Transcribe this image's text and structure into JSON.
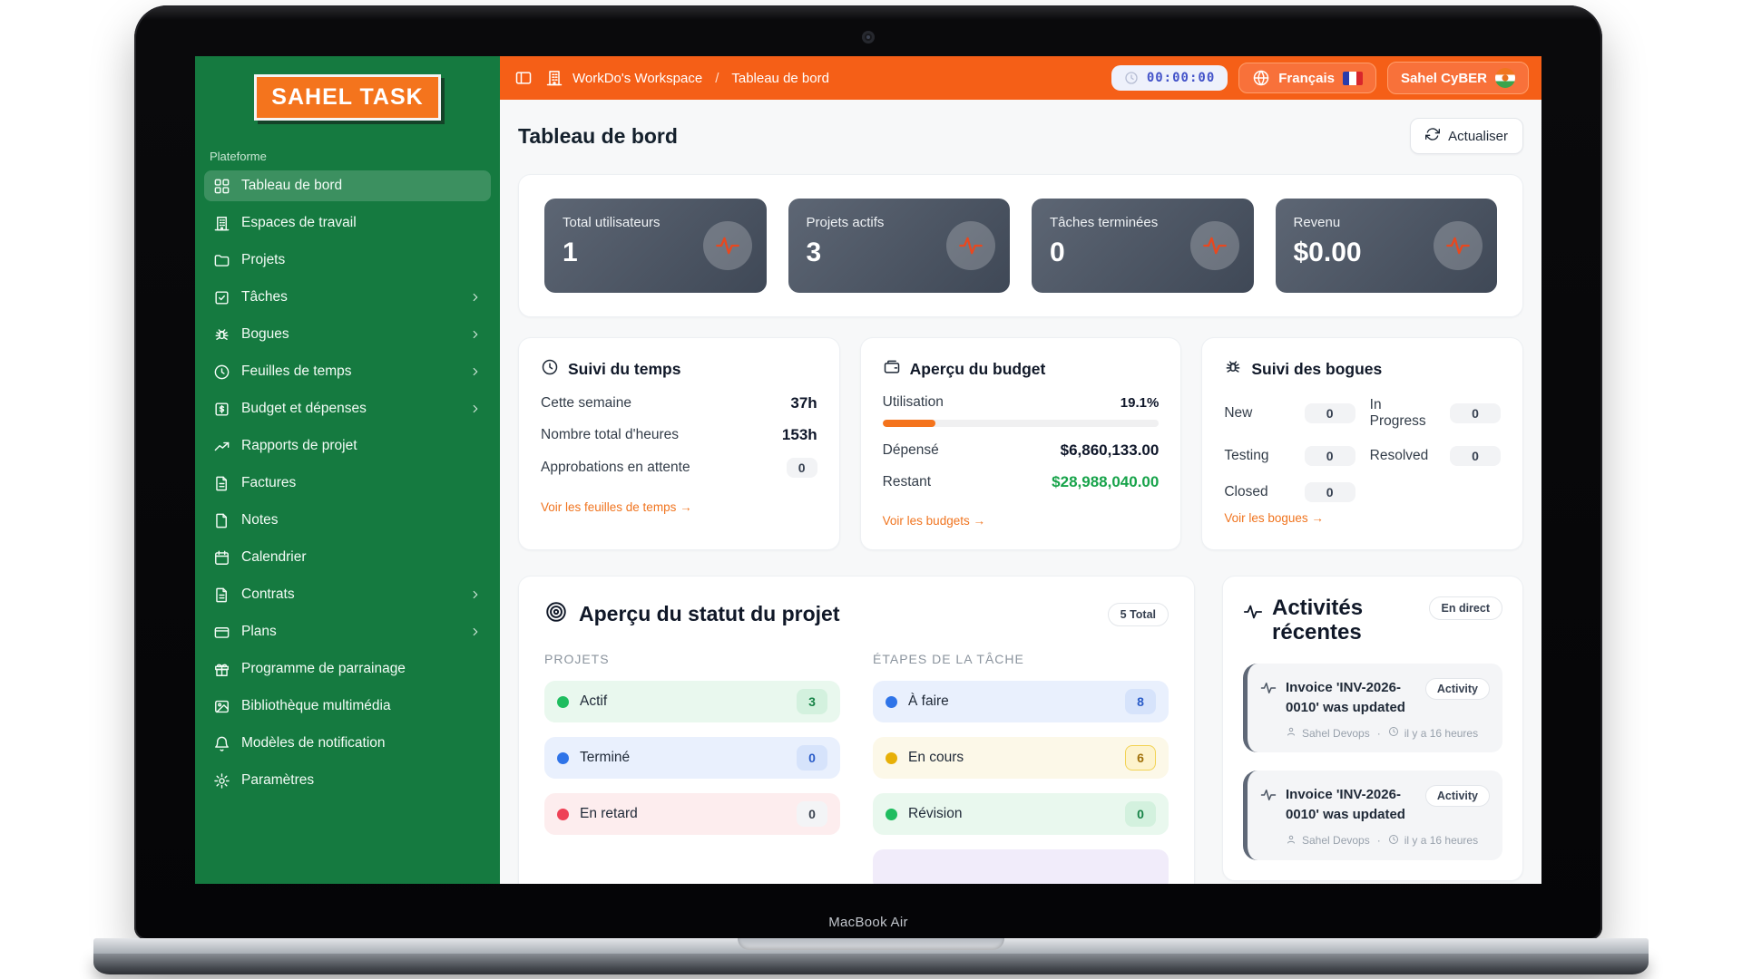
{
  "frame": {
    "model": "MacBook Air"
  },
  "colors": {
    "sidebar_green": "#157a40",
    "header_orange": "#f55f17",
    "accent_orange": "#f4731c",
    "money_green": "#17a34a",
    "stat_card_slate": "#4b5563",
    "timer_text_blue": "#4353c9"
  },
  "sidebar": {
    "logo": "SAHEL TASK",
    "section_label": "Plateforme",
    "items": [
      {
        "label": "Tableau de bord",
        "icon": "grid-icon",
        "active": true,
        "chevron": false
      },
      {
        "label": "Espaces de travail",
        "icon": "building-icon",
        "active": false,
        "chevron": false
      },
      {
        "label": "Projets",
        "icon": "folder-icon",
        "active": false,
        "chevron": false
      },
      {
        "label": "Tâches",
        "icon": "check-square-icon",
        "active": false,
        "chevron": true
      },
      {
        "label": "Bogues",
        "icon": "bug-icon",
        "active": false,
        "chevron": true
      },
      {
        "label": "Feuilles de temps",
        "icon": "clock-icon",
        "active": false,
        "chevron": true
      },
      {
        "label": "Budget et dépenses",
        "icon": "dollar-square-icon",
        "active": false,
        "chevron": true
      },
      {
        "label": "Rapports de projet",
        "icon": "trend-up-icon",
        "active": false,
        "chevron": false
      },
      {
        "label": "Factures",
        "icon": "file-text-icon",
        "active": false,
        "chevron": false
      },
      {
        "label": "Notes",
        "icon": "file-icon",
        "active": false,
        "chevron": false
      },
      {
        "label": "Calendrier",
        "icon": "calendar-icon",
        "active": false,
        "chevron": false
      },
      {
        "label": "Contrats",
        "icon": "file-text-icon",
        "active": false,
        "chevron": true
      },
      {
        "label": "Plans",
        "icon": "card-icon",
        "active": false,
        "chevron": true
      },
      {
        "label": "Programme de parrainage",
        "icon": "gift-icon",
        "active": false,
        "chevron": false
      },
      {
        "label": "Bibliothèque multimédia",
        "icon": "image-icon",
        "active": false,
        "chevron": false
      },
      {
        "label": "Modèles de notification",
        "icon": "bell-icon",
        "active": false,
        "chevron": false
      },
      {
        "label": "Paramètres",
        "icon": "gear-icon",
        "active": false,
        "chevron": false
      }
    ]
  },
  "header": {
    "workspace": "WorkDo's Workspace",
    "separator": "/",
    "breadcrumb_current": "Tableau de bord",
    "timer": "00:00:00",
    "language": "Français",
    "user": "Sahel CyBER"
  },
  "page": {
    "title": "Tableau de bord",
    "refresh_label": "Actualiser"
  },
  "stats": [
    {
      "label": "Total utilisateurs",
      "value": "1",
      "icon": "pulse-icon"
    },
    {
      "label": "Projets actifs",
      "value": "3",
      "icon": "pulse-icon"
    },
    {
      "label": "Tâches terminées",
      "value": "0",
      "icon": "pulse-icon"
    },
    {
      "label": "Revenu",
      "value": "$0.00",
      "icon": "pulse-icon"
    }
  ],
  "time_card": {
    "title": "Suivi du temps",
    "icon": "clock-icon",
    "rows": [
      {
        "label": "Cette semaine",
        "value": "37h",
        "type": "value"
      },
      {
        "label": "Nombre total d'heures",
        "value": "153h",
        "type": "value"
      },
      {
        "label": "Approbations en attente",
        "value": "0",
        "type": "pill"
      }
    ],
    "link": "Voir les feuilles de temps →"
  },
  "budget_card": {
    "title": "Aperçu du budget",
    "icon": "wallet-icon",
    "utilization_label": "Utilisation",
    "utilization_value": "19.1%",
    "utilization_percent": 19.1,
    "spent_label": "Dépensé",
    "spent_value": "$6,860,133.00",
    "remaining_label": "Restant",
    "remaining_value": "$28,988,040.00",
    "link": "Voir les budgets →"
  },
  "bugs_card": {
    "title": "Suivi des bogues",
    "icon": "bug-icon",
    "stats": [
      {
        "label": "New",
        "value": "0"
      },
      {
        "label": "In Progress",
        "value": "0"
      },
      {
        "label": "Testing",
        "value": "0"
      },
      {
        "label": "Resolved",
        "value": "0"
      },
      {
        "label": "Closed",
        "value": "0"
      }
    ],
    "link": "Voir les bogues →"
  },
  "status_card": {
    "title": "Aperçu du statut du projet",
    "icon": "target-icon",
    "badge": "5 Total",
    "projects": {
      "heading": "PROJETS",
      "rows": [
        {
          "label": "Actif",
          "count": "3",
          "color": "green"
        },
        {
          "label": "Terminé",
          "count": "0",
          "color": "blue"
        },
        {
          "label": "En retard",
          "count": "0",
          "color": "red"
        }
      ]
    },
    "stages": {
      "heading": "ÉTAPES DE LA TÂCHE",
      "rows": [
        {
          "label": "À faire",
          "count": "8",
          "color": "blue"
        },
        {
          "label": "En cours",
          "count": "6",
          "color": "yellow"
        },
        {
          "label": "Révision",
          "count": "0",
          "color": "green"
        },
        {
          "label": "",
          "count": "",
          "color": "purple"
        }
      ]
    }
  },
  "activity_card": {
    "title": "Activités récentes",
    "icon": "pulse-icon",
    "live_badge": "En direct",
    "items": [
      {
        "title": "Invoice 'INV-2026-0010' was updated",
        "badge": "Activity",
        "user": "Sahel Devops",
        "time": "il y a 16 heures"
      },
      {
        "title": "Invoice 'INV-2026-0010' was updated",
        "badge": "Activity",
        "user": "Sahel Devops",
        "time": "il y a 16 heures"
      }
    ]
  }
}
